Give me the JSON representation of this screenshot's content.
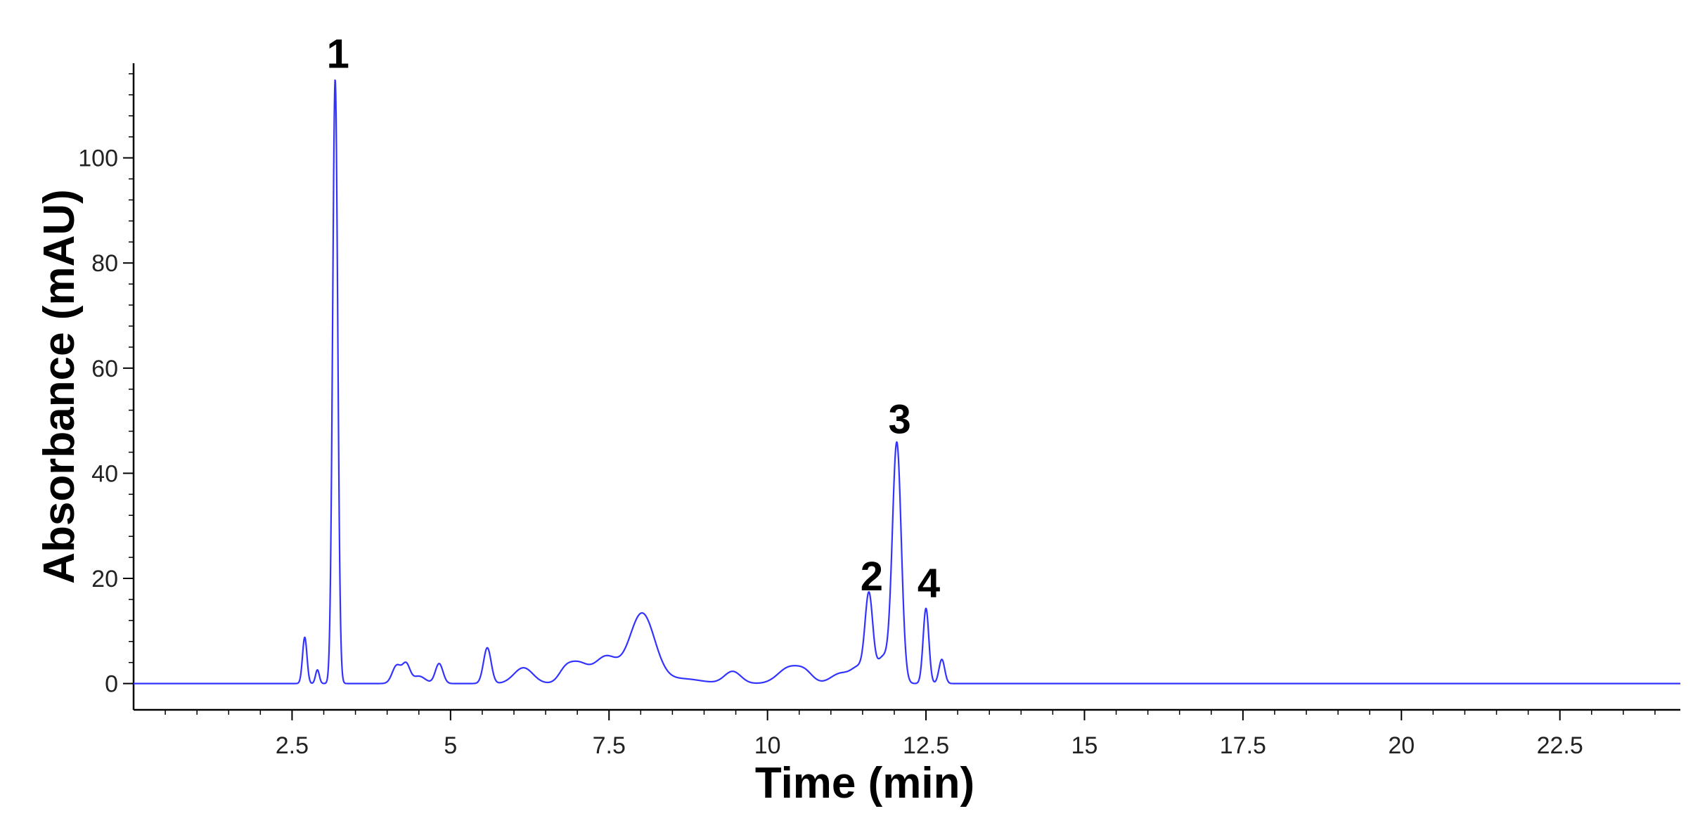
{
  "chart_data": {
    "type": "line",
    "title": "",
    "xlabel": "Time (min)",
    "ylabel": "Absorbance (mAU)",
    "xlim": [
      0,
      24.4
    ],
    "ylim": [
      -5,
      118
    ],
    "x_ticks": [
      2.5,
      5,
      7.5,
      10,
      12.5,
      15,
      17.5,
      20,
      22.5
    ],
    "x_tick_labels": [
      "2.5",
      "5",
      "7.5",
      "10",
      "12.5",
      "15",
      "17.5",
      "20",
      "22.5"
    ],
    "y_ticks": [
      0,
      20,
      40,
      60,
      80,
      100
    ],
    "y_tick_labels": [
      "0",
      "20",
      "40",
      "60",
      "80",
      "100"
    ],
    "grid": false,
    "legend": "none",
    "line_color": "#3333ff",
    "baseline": 0,
    "peaks": [
      {
        "x": 2.7,
        "y": 8.8,
        "w": 0.035
      },
      {
        "x": 2.9,
        "y": 2.6,
        "w": 0.03
      },
      {
        "x": 3.18,
        "y": 115,
        "w": 0.04
      },
      {
        "x": 4.15,
        "y": 3.4,
        "w": 0.07
      },
      {
        "x": 4.3,
        "y": 3.5,
        "w": 0.06
      },
      {
        "x": 4.5,
        "y": 1.4,
        "w": 0.1
      },
      {
        "x": 4.82,
        "y": 3.8,
        "w": 0.06
      },
      {
        "x": 5.58,
        "y": 6.8,
        "w": 0.06
      },
      {
        "x": 6.15,
        "y": 3.0,
        "w": 0.15
      },
      {
        "x": 6.8,
        "y": 1.6,
        "w": 0.1
      },
      {
        "x": 7.0,
        "y": 3.8,
        "w": 0.16
      },
      {
        "x": 7.45,
        "y": 5.0,
        "w": 0.18
      },
      {
        "x": 8.02,
        "y": 13.3,
        "w": 0.2
      },
      {
        "x": 8.65,
        "y": 0.9,
        "w": 0.3
      },
      {
        "x": 9.45,
        "y": 2.3,
        "w": 0.13
      },
      {
        "x": 10.35,
        "y": 3.1,
        "w": 0.18
      },
      {
        "x": 10.6,
        "y": 1.6,
        "w": 0.12
      },
      {
        "x": 11.15,
        "y": 1.9,
        "w": 0.15
      },
      {
        "x": 11.45,
        "y": 3.0,
        "w": 0.12
      },
      {
        "x": 11.6,
        "y": 15.6,
        "w": 0.06
      },
      {
        "x": 11.82,
        "y": 5.0,
        "w": 0.1
      },
      {
        "x": 12.04,
        "y": 45.5,
        "w": 0.07
      },
      {
        "x": 12.5,
        "y": 14.3,
        "w": 0.045
      },
      {
        "x": 12.75,
        "y": 4.6,
        "w": 0.045
      }
    ],
    "annotations": [
      {
        "text": "1",
        "x": 3.18,
        "y": 115
      },
      {
        "text": "2",
        "x": 11.6,
        "y": 15.6
      },
      {
        "text": "3",
        "x": 12.04,
        "y": 45.5
      },
      {
        "text": "4",
        "x": 12.5,
        "y": 14.3
      }
    ]
  }
}
